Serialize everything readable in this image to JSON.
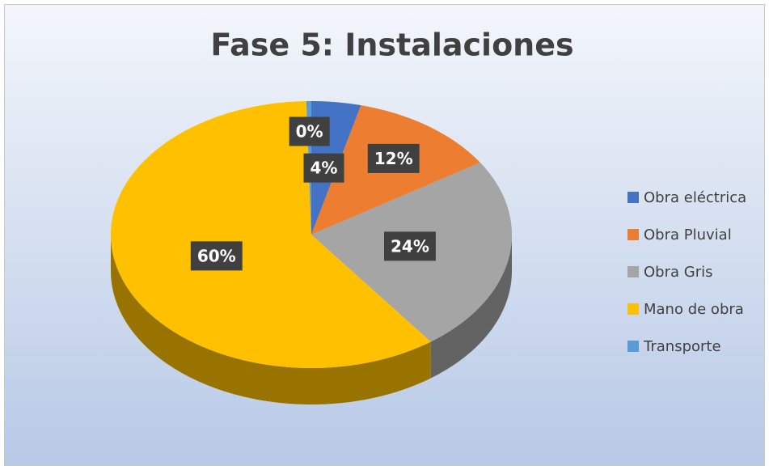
{
  "chart_data": {
    "type": "pie",
    "title": "Fase 5: Instalaciones",
    "categories": [
      "Obra eléctrica",
      "Obra Pluvial",
      "Obra Gris",
      "Mano de obra",
      "Transporte"
    ],
    "values": [
      4,
      12,
      24,
      60,
      0.4
    ],
    "value_labels": [
      "4%",
      "12%",
      "24%",
      "60%",
      "0%"
    ],
    "colors": [
      "#4472c4",
      "#ed7d31",
      "#a5a5a5",
      "#ffc000",
      "#5b9bd5"
    ],
    "legend": "right"
  }
}
